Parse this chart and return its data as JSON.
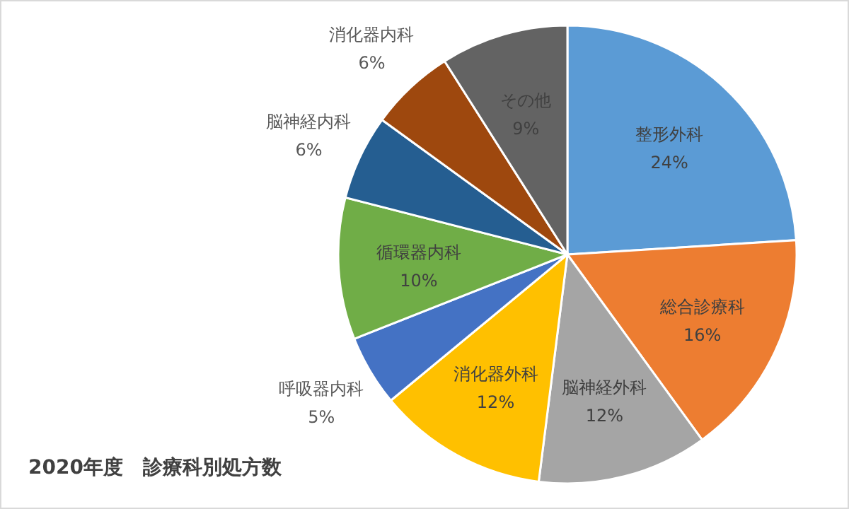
{
  "chart_data": {
    "type": "pie",
    "title": "2020年度　診療科別処方数",
    "categories": [
      "整形外科",
      "総合診療科",
      "脳神経外科",
      "消化器外科",
      "呼吸器内科",
      "循環器内科",
      "脳神経内科",
      "消化器内科",
      "その他"
    ],
    "values": [
      24,
      16,
      12,
      12,
      5,
      10,
      6,
      6,
      9
    ],
    "colors": [
      "#5b9bd5",
      "#ed7d31",
      "#a5a5a5",
      "#ffc000",
      "#4472c4",
      "#70ad47",
      "#255e91",
      "#9e480e",
      "#636363"
    ],
    "value_labels": [
      "24%",
      "16%",
      "12%",
      "12%",
      "5%",
      "10%",
      "6%",
      "6%",
      "9%"
    ]
  }
}
